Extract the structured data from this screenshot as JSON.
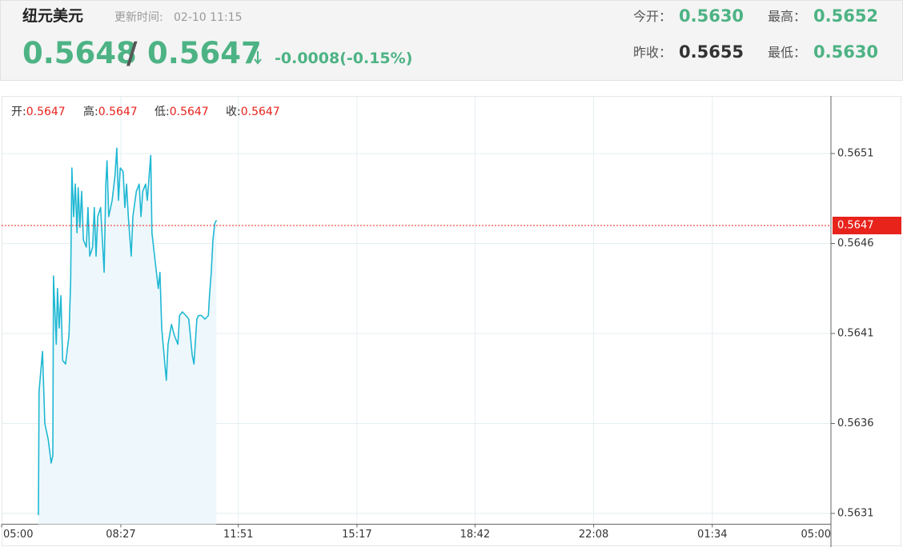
{
  "header": {
    "title": "纽元美元",
    "update_label": "更新时间:",
    "update_time": "02-10 11:15",
    "bid": "0.5648",
    "separator": "/",
    "ask": "0.5647",
    "change": "-0.0008(-0.15%)",
    "stats": [
      {
        "label": "今开：",
        "value": "0.5630"
      },
      {
        "label": "最高：",
        "value": "0.5652"
      },
      {
        "label": "昨收：",
        "value": "0.5655"
      },
      {
        "label": "最低：",
        "value": "0.5630"
      }
    ]
  },
  "chart_data": {
    "type": "line",
    "ohlc": [
      {
        "label": "开:",
        "value": 0.5647
      },
      {
        "label": "高:",
        "value": 0.5647
      },
      {
        "label": "低:",
        "value": 0.5647
      },
      {
        "label": "收:",
        "value": 0.5647
      }
    ],
    "color": "#1fb8d3",
    "fill_color": "#eef8fc",
    "last_price": 0.5647,
    "last_price_color": "#e8231c",
    "grid": true,
    "xlim": [
      0,
      1440
    ],
    "xticks": [
      {
        "value": 0,
        "label": "05:00"
      },
      {
        "value": 207,
        "label": "08:27"
      },
      {
        "value": 411,
        "label": "11:51"
      },
      {
        "value": 617,
        "label": "15:17"
      },
      {
        "value": 822,
        "label": "18:42"
      },
      {
        "value": 1028,
        "label": "22:08"
      },
      {
        "value": 1234,
        "label": "01:34"
      },
      {
        "value": 1440,
        "label": "05:00"
      }
    ],
    "ylim": [
      0.56304,
      0.56542
    ],
    "yticks": [
      0.5631,
      0.5636,
      0.5641,
      0.5646,
      0.5651
    ],
    "x": [
      64,
      65,
      71,
      75,
      81,
      86,
      89,
      90,
      95,
      97,
      100,
      103,
      106,
      111,
      117,
      120,
      122,
      125,
      128,
      131,
      133,
      136,
      139,
      142,
      147,
      150,
      153,
      158,
      161,
      164,
      167,
      172,
      178,
      181,
      183,
      186,
      192,
      197,
      200,
      203,
      206,
      211,
      214,
      217,
      220,
      225,
      228,
      234,
      239,
      242,
      245,
      250,
      253,
      259,
      261,
      267,
      272,
      275,
      278,
      284,
      286,
      289,
      295,
      300,
      306,
      309,
      314,
      320,
      325,
      331,
      334,
      339,
      342,
      347,
      353,
      359,
      361,
      364,
      367,
      370,
      373
    ],
    "values": [
      0.56309,
      0.56378,
      0.564,
      0.5636,
      0.56351,
      0.56338,
      0.56342,
      0.56442,
      0.56404,
      0.56435,
      0.56413,
      0.56431,
      0.56395,
      0.56393,
      0.56409,
      0.5644,
      0.56502,
      0.56475,
      0.56493,
      0.56466,
      0.56491,
      0.56469,
      0.56489,
      0.56462,
      0.56458,
      0.5648,
      0.56453,
      0.56458,
      0.5648,
      0.56453,
      0.56475,
      0.5648,
      0.56444,
      0.56493,
      0.56506,
      0.56475,
      0.56484,
      0.56498,
      0.56513,
      0.56484,
      0.56502,
      0.565,
      0.5648,
      0.56493,
      0.56475,
      0.56453,
      0.56475,
      0.56489,
      0.56493,
      0.56475,
      0.56489,
      0.56493,
      0.56484,
      0.56509,
      0.56466,
      0.56449,
      0.56435,
      0.56444,
      0.56413,
      0.56391,
      0.56384,
      0.56404,
      0.56415,
      0.56409,
      0.56404,
      0.5642,
      0.56422,
      0.5642,
      0.56418,
      0.56398,
      0.56393,
      0.56418,
      0.5642,
      0.5642,
      0.56418,
      0.5642,
      0.56431,
      0.56444,
      0.56462,
      0.56471,
      0.56473
    ]
  }
}
